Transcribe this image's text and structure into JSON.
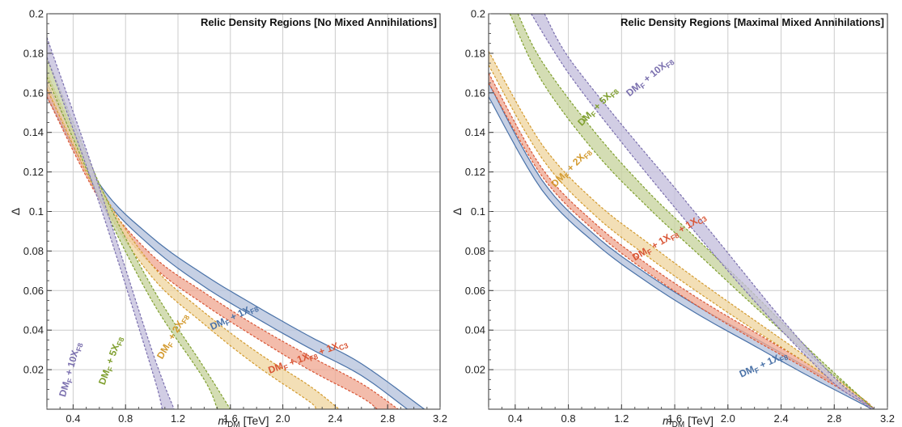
{
  "chart_data": [
    {
      "type": "area",
      "title": "Relic Density Regions [No Mixed Annihilations]",
      "xlabel": "m_DM [TeV]",
      "xlabel_main": "m",
      "xlabel_sub": "DM",
      "xlabel_unit": " [TeV]",
      "ylabel": "Δ",
      "xlim": [
        0.2,
        3.2
      ],
      "ylim": [
        0.0,
        0.2
      ],
      "xticks": [
        "0.4",
        "0.8",
        "1.2",
        "1.6",
        "2.0",
        "2.4",
        "2.8",
        "3.2"
      ],
      "yticks": [
        "0.02",
        "0.04",
        "0.06",
        "0.08",
        "0.1",
        "0.12",
        "0.14",
        "0.16",
        "0.18",
        "0.2"
      ],
      "grid": true,
      "series": [
        {
          "name": "DM_F + 1X_F8",
          "color": "#4a72a8",
          "fill": "#b6c3dc",
          "label_parts": [
            [
              "DM",
              ""
            ],
            [
              "F",
              "sub"
            ],
            [
              " + 1X",
              ""
            ],
            [
              "F8",
              "sub"
            ]
          ],
          "lower": [
            [
              0.2,
              0.158
            ],
            [
              0.6,
              0.11
            ],
            [
              1.0,
              0.082
            ],
            [
              1.4,
              0.062
            ],
            [
              1.8,
              0.046
            ],
            [
              2.2,
              0.031
            ],
            [
              2.6,
              0.017
            ],
            [
              2.95,
              0.0
            ]
          ],
          "upper": [
            [
              0.2,
              0.165
            ],
            [
              0.6,
              0.114
            ],
            [
              1.0,
              0.087
            ],
            [
              1.4,
              0.068
            ],
            [
              1.8,
              0.052
            ],
            [
              2.2,
              0.037
            ],
            [
              2.6,
              0.023
            ],
            [
              3.08,
              0.0
            ]
          ]
        },
        {
          "name": "DM_F + 1X_F8 + 1X_C3",
          "color": "#d95535",
          "fill": "#f0a994",
          "label_parts": [
            [
              "DM",
              ""
            ],
            [
              "F",
              "sub"
            ],
            [
              " + 1X",
              ""
            ],
            [
              "F8",
              "sub"
            ],
            [
              " + 1X",
              ""
            ],
            [
              "C3",
              "sub"
            ]
          ],
          "lower": [
            [
              0.2,
              0.158
            ],
            [
              0.6,
              0.106
            ],
            [
              1.0,
              0.073
            ],
            [
              1.4,
              0.053
            ],
            [
              1.8,
              0.036
            ],
            [
              2.2,
              0.02
            ],
            [
              2.6,
              0.006
            ],
            [
              2.72,
              0.0
            ]
          ],
          "upper": [
            [
              0.2,
              0.163
            ],
            [
              0.6,
              0.11
            ],
            [
              1.0,
              0.078
            ],
            [
              1.4,
              0.059
            ],
            [
              1.8,
              0.042
            ],
            [
              2.2,
              0.027
            ],
            [
              2.6,
              0.013
            ],
            [
              2.88,
              0.0
            ]
          ]
        },
        {
          "name": "DM_F + 2X_F8",
          "color": "#d39a2e",
          "fill": "#efd6a1",
          "label_parts": [
            [
              "DM",
              ""
            ],
            [
              "F",
              "sub"
            ],
            [
              " + 2X",
              ""
            ],
            [
              "F8",
              "sub"
            ]
          ],
          "lower": [
            [
              0.2,
              0.162
            ],
            [
              0.6,
              0.107
            ],
            [
              1.0,
              0.067
            ],
            [
              1.4,
              0.043
            ],
            [
              1.8,
              0.022
            ],
            [
              2.2,
              0.004
            ],
            [
              2.25,
              0.0
            ]
          ],
          "upper": [
            [
              0.2,
              0.17
            ],
            [
              0.6,
              0.113
            ],
            [
              1.0,
              0.073
            ],
            [
              1.4,
              0.049
            ],
            [
              1.8,
              0.029
            ],
            [
              2.2,
              0.012
            ],
            [
              2.43,
              0.0
            ]
          ]
        },
        {
          "name": "DM_F + 5X_F8",
          "color": "#7f9f2e",
          "fill": "#c8d49f",
          "label_parts": [
            [
              "DM",
              ""
            ],
            [
              "F",
              "sub"
            ],
            [
              " + 5X",
              ""
            ],
            [
              "F8",
              "sub"
            ]
          ],
          "lower": [
            [
              0.2,
              0.168
            ],
            [
              0.6,
              0.107
            ],
            [
              1.0,
              0.055
            ],
            [
              1.4,
              0.015
            ],
            [
              1.5,
              0.0
            ]
          ],
          "upper": [
            [
              0.2,
              0.178
            ],
            [
              0.6,
              0.114
            ],
            [
              1.0,
              0.062
            ],
            [
              1.4,
              0.021
            ],
            [
              1.6,
              0.0
            ]
          ]
        },
        {
          "name": "DM_F + 10X_F8",
          "color": "#7a6fae",
          "fill": "#c4bfdc",
          "label_parts": [
            [
              "DM",
              ""
            ],
            [
              "F",
              "sub"
            ],
            [
              " + 10X",
              ""
            ],
            [
              "F8",
              "sub"
            ]
          ],
          "lower": [
            [
              0.2,
              0.178
            ],
            [
              0.6,
              0.104
            ],
            [
              1.0,
              0.02
            ],
            [
              1.08,
              0.0
            ]
          ],
          "upper": [
            [
              0.2,
              0.188
            ],
            [
              0.6,
              0.112
            ],
            [
              1.0,
              0.03
            ],
            [
              1.17,
              0.0
            ]
          ]
        }
      ]
    },
    {
      "type": "area",
      "title": "Relic Density Regions [Maximal Mixed Annihilations]",
      "xlabel": "m_DM [TeV]",
      "xlabel_main": "m",
      "xlabel_sub": "DM",
      "xlabel_unit": " [TeV]",
      "ylabel": "Δ",
      "xlim": [
        0.2,
        3.2
      ],
      "ylim": [
        0.0,
        0.2
      ],
      "xticks": [
        "0.4",
        "0.8",
        "1.2",
        "1.6",
        "2.0",
        "2.4",
        "2.8",
        "3.2"
      ],
      "yticks": [
        "0.02",
        "0.04",
        "0.06",
        "0.08",
        "0.1",
        "0.12",
        "0.14",
        "0.16",
        "0.18",
        "0.2"
      ],
      "grid": true,
      "series": [
        {
          "name": "DM_F + 1X_F8",
          "color": "#4a72a8",
          "fill": "#b6c3dc",
          "label_parts": [
            [
              "DM",
              ""
            ],
            [
              "F",
              "sub"
            ],
            [
              " + 1X",
              ""
            ],
            [
              "F8",
              "sub"
            ]
          ],
          "lower": [
            [
              0.2,
              0.158
            ],
            [
              0.6,
              0.111
            ],
            [
              1.0,
              0.084
            ],
            [
              1.4,
              0.064
            ],
            [
              1.8,
              0.047
            ],
            [
              2.2,
              0.032
            ],
            [
              2.6,
              0.017
            ],
            [
              3.0,
              0.003
            ],
            [
              3.08,
              0.0
            ]
          ],
          "upper": [
            [
              0.2,
              0.165
            ],
            [
              0.6,
              0.116
            ],
            [
              1.0,
              0.088
            ],
            [
              1.4,
              0.068
            ],
            [
              1.8,
              0.051
            ],
            [
              2.2,
              0.036
            ],
            [
              2.6,
              0.021
            ],
            [
              3.0,
              0.005
            ],
            [
              3.1,
              0.0
            ]
          ]
        },
        {
          "name": "DM_F + 1X_F8 + 1X_C3",
          "color": "#d95535",
          "fill": "#f0a994",
          "label_parts": [
            [
              "DM",
              ""
            ],
            [
              "F",
              "sub"
            ],
            [
              " + 1X",
              ""
            ],
            [
              "F8",
              "sub"
            ],
            [
              " + 1X",
              ""
            ],
            [
              "C3",
              "sub"
            ]
          ],
          "lower": [
            [
              0.2,
              0.165
            ],
            [
              0.6,
              0.118
            ],
            [
              1.0,
              0.09
            ],
            [
              1.4,
              0.069
            ],
            [
              1.8,
              0.051
            ],
            [
              2.2,
              0.035
            ],
            [
              2.6,
              0.02
            ],
            [
              3.0,
              0.004
            ],
            [
              3.08,
              0.0
            ]
          ],
          "upper": [
            [
              0.2,
              0.17
            ],
            [
              0.6,
              0.122
            ],
            [
              1.0,
              0.094
            ],
            [
              1.4,
              0.073
            ],
            [
              1.8,
              0.055
            ],
            [
              2.2,
              0.039
            ],
            [
              2.6,
              0.023
            ],
            [
              3.0,
              0.006
            ],
            [
              3.1,
              0.0
            ]
          ]
        },
        {
          "name": "DM_F + 2X_F8",
          "color": "#d39a2e",
          "fill": "#efd6a1",
          "label_parts": [
            [
              "DM",
              ""
            ],
            [
              "F",
              "sub"
            ],
            [
              " + 2X",
              ""
            ],
            [
              "F8",
              "sub"
            ]
          ],
          "lower": [
            [
              0.2,
              0.174
            ],
            [
              0.6,
              0.127
            ],
            [
              1.0,
              0.098
            ],
            [
              1.4,
              0.077
            ],
            [
              1.8,
              0.058
            ],
            [
              2.2,
              0.04
            ],
            [
              2.6,
              0.023
            ],
            [
              3.0,
              0.005
            ],
            [
              3.08,
              0.0
            ]
          ],
          "upper": [
            [
              0.2,
              0.181
            ],
            [
              0.6,
              0.134
            ],
            [
              1.0,
              0.105
            ],
            [
              1.4,
              0.084
            ],
            [
              1.8,
              0.064
            ],
            [
              2.2,
              0.045
            ],
            [
              2.6,
              0.026
            ],
            [
              3.0,
              0.006
            ],
            [
              3.1,
              0.0
            ]
          ]
        },
        {
          "name": "DM_F + 5X_F8",
          "color": "#7f9f2e",
          "fill": "#c8d49f",
          "label_parts": [
            [
              "DM",
              ""
            ],
            [
              "F",
              "sub"
            ],
            [
              " + 5X",
              ""
            ],
            [
              "F8",
              "sub"
            ]
          ],
          "lower": [
            [
              0.36,
              0.2
            ],
            [
              0.6,
              0.166
            ],
            [
              1.0,
              0.13
            ],
            [
              1.4,
              0.102
            ],
            [
              1.8,
              0.077
            ],
            [
              2.2,
              0.052
            ],
            [
              2.6,
              0.028
            ],
            [
              3.0,
              0.006
            ],
            [
              3.08,
              0.0
            ]
          ],
          "upper": [
            [
              0.42,
              0.2
            ],
            [
              0.6,
              0.176
            ],
            [
              1.0,
              0.14
            ],
            [
              1.4,
              0.11
            ],
            [
              1.8,
              0.084
            ],
            [
              2.2,
              0.058
            ],
            [
              2.6,
              0.031
            ],
            [
              3.0,
              0.006
            ],
            [
              3.1,
              0.0
            ]
          ]
        },
        {
          "name": "DM_F + 10X_F8",
          "color": "#7a6fae",
          "fill": "#c4bfdc",
          "label_parts": [
            [
              "DM",
              ""
            ],
            [
              "F",
              "sub"
            ],
            [
              " + 10X",
              ""
            ],
            [
              "F8",
              "sub"
            ]
          ],
          "lower": [
            [
              0.52,
              0.2
            ],
            [
              0.8,
              0.17
            ],
            [
              1.2,
              0.135
            ],
            [
              1.6,
              0.102
            ],
            [
              2.0,
              0.07
            ],
            [
              2.4,
              0.04
            ],
            [
              2.8,
              0.013
            ],
            [
              3.0,
              0.004
            ],
            [
              3.08,
              0.0
            ]
          ],
          "upper": [
            [
              0.62,
              0.2
            ],
            [
              0.8,
              0.178
            ],
            [
              1.2,
              0.144
            ],
            [
              1.6,
              0.112
            ],
            [
              2.0,
              0.079
            ],
            [
              2.4,
              0.046
            ],
            [
              2.8,
              0.016
            ],
            [
              3.0,
              0.005
            ],
            [
              3.1,
              0.0
            ]
          ]
        }
      ]
    }
  ]
}
